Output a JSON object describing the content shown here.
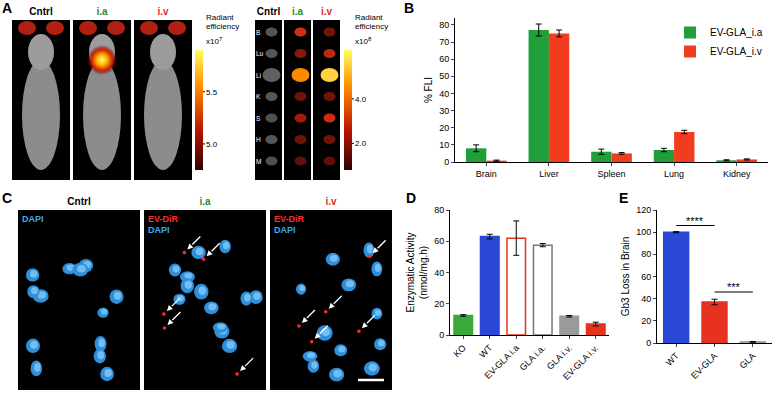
{
  "panels": {
    "A": {
      "label": "A",
      "live": {
        "columns": [
          {
            "text": "Cntrl",
            "color": "#000000"
          },
          {
            "text": "i.a",
            "color": "#2e8b2e"
          },
          {
            "text": "i.v",
            "color": "#e0301e"
          }
        ],
        "colorbar": {
          "title": "Radiant efficiency",
          "multiplier": "x10",
          "exponent": "7",
          "range": [
            4.75,
            5.9
          ],
          "ticks": [
            {
              "value": 5,
              "label": "5.0"
            },
            {
              "value": 5.5,
              "label": "5.5"
            }
          ]
        }
      },
      "organs": {
        "columns": [
          {
            "text": "Cntrl",
            "color": "#000000"
          },
          {
            "text": "i.a",
            "color": "#2e8b2e"
          },
          {
            "text": "i.v",
            "color": "#e0301e"
          }
        ],
        "rows": [
          "B",
          "Lu",
          "Li",
          "K",
          "S",
          "H",
          "M"
        ],
        "colorbar": {
          "title": "Radiant efficiency",
          "multiplier": "x10",
          "exponent": "8",
          "range": [
            0.8,
            6.2
          ],
          "ticks": [
            {
              "value": 2,
              "label": "2.0"
            },
            {
              "value": 4,
              "label": "4.0"
            }
          ]
        }
      }
    },
    "C": {
      "label": "C",
      "columns": [
        {
          "text": "Cntrl",
          "color": "#000000",
          "stains": [
            {
              "text": "DAPI",
              "color": "#3fa9f5"
            }
          ]
        },
        {
          "text": "i.a",
          "color": "#2e8b2e",
          "stains": [
            {
              "text": "EV-DiR",
              "color": "#ff2a2a"
            },
            {
              "text": "DAPI",
              "color": "#3fa9f5"
            }
          ]
        },
        {
          "text": "i.v",
          "color": "#e0301e",
          "stains": [
            {
              "text": "EV-DiR",
              "color": "#ff2a2a"
            },
            {
              "text": "DAPI",
              "color": "#3fa9f5"
            }
          ]
        }
      ]
    }
  },
  "chart_data": [
    {
      "label": "B",
      "type": "bar",
      "categories": [
        "Brain",
        "Liver",
        "Spleen",
        "Lung",
        "Kidney"
      ],
      "series": [
        {
          "name": "EV-GLA_i.a",
          "color": "#1f9e3a",
          "values": [
            8,
            77,
            6,
            7,
            1
          ],
          "errors": [
            2,
            3.5,
            1.5,
            1,
            0.3
          ]
        },
        {
          "name": "EV-GLA_i.v",
          "color": "#f23c1e",
          "values": [
            0.8,
            75,
            5,
            17.5,
            1.5
          ],
          "errors": [
            0.3,
            2,
            0.5,
            1,
            0.3
          ]
        }
      ],
      "y_label": "% FLI",
      "ylim": [
        0,
        84
      ],
      "yticks": [
        0,
        10,
        20,
        30,
        40,
        50,
        60,
        70,
        80
      ],
      "legend": "top right",
      "grid": false
    },
    {
      "label": "D",
      "type": "bar",
      "categories": [
        "KO",
        "WT",
        "EV-GLA i.a",
        "GLA i.a.",
        "GLA i.v.",
        "EV-GLA i.v."
      ],
      "values": [
        12.5,
        63,
        62,
        57.5,
        12,
        7
      ],
      "errors": [
        0.5,
        1.5,
        11,
        1,
        0.5,
        1.2
      ],
      "colors": [
        "#3aa83a",
        "#2a48d6",
        "rgba(230,50,30,0)",
        "rgba(120,120,120,0)",
        "#9a9a9a",
        "#e6321e"
      ],
      "y_label": [
        "Enzymatic Activity",
        "(nmol/mg.h)"
      ],
      "ylim": [
        0,
        80
      ],
      "yticks": [
        0,
        20,
        40,
        60,
        80
      ],
      "grid": false
    },
    {
      "label": "E",
      "type": "bar",
      "categories": [
        "WT",
        "EV-GLA",
        "GLA"
      ],
      "values": [
        100,
        37,
        1
      ],
      "errors": [
        0.5,
        2.5,
        0.3
      ],
      "colors": [
        "#2a48d6",
        "#e6321e",
        "#9a9a9a"
      ],
      "y_label": "Gb3 Loss in Brain",
      "ylim": [
        0,
        120
      ],
      "yticks": [
        0,
        20,
        40,
        60,
        80,
        100,
        120
      ],
      "annotations": [
        {
          "text": "****",
          "from": "WT",
          "to": "EV-GLA",
          "y": 106
        },
        {
          "text": "***",
          "from": "EV-GLA",
          "to": "GLA",
          "y": 46
        }
      ],
      "grid": false
    }
  ]
}
